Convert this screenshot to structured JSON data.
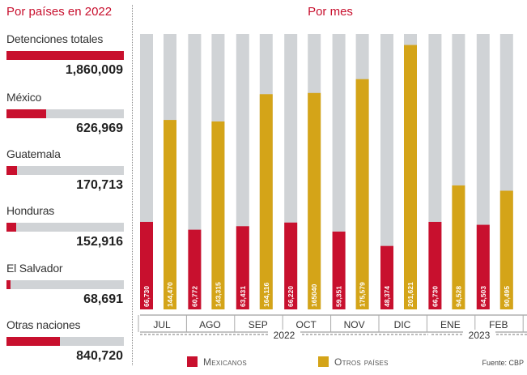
{
  "left_panel": {
    "title": "Por países en 2022",
    "max_value": 1860009,
    "items": [
      {
        "label": "Detenciones totales",
        "value": 1860009,
        "display": "1,860,009"
      },
      {
        "label": "México",
        "value": 626969,
        "display": "626,969"
      },
      {
        "label": "Guatemala",
        "value": 170713,
        "display": "170,713"
      },
      {
        "label": "Honduras",
        "value": 152916,
        "display": "152,916"
      },
      {
        "label": "El Salvador",
        "value": 68691,
        "display": "68,691"
      },
      {
        "label": "Otras naciones",
        "value": 840720,
        "display": "840,720"
      }
    ]
  },
  "right_panel": {
    "title": "Por mes"
  },
  "chart_data": {
    "type": "bar",
    "categories": [
      "JUL",
      "AGO",
      "SEP",
      "OCT",
      "NOV",
      "DIC",
      "ENE",
      "FEB"
    ],
    "years": [
      {
        "label": "2022",
        "months": [
          "JUL",
          "AGO",
          "SEP",
          "OCT",
          "NOV",
          "DIC"
        ]
      },
      {
        "label": "2023",
        "months": [
          "ENE",
          "FEB"
        ]
      }
    ],
    "series": [
      {
        "name": "Mexicanos",
        "values": [
          66730,
          60772,
          63431,
          66220,
          59351,
          48374,
          66730,
          64503
        ],
        "labels": [
          "66,730",
          "60,772",
          "63,431",
          "66,220",
          "59,351",
          "48,374",
          "66,730",
          "64,503"
        ]
      },
      {
        "name": "Otros países",
        "values": [
          144470,
          143315,
          164116,
          165040,
          175579,
          201621,
          94528,
          90495
        ],
        "labels": [
          "144,470",
          "143,315",
          "164,116",
          "165040",
          "175,579",
          "201,621",
          "94,528",
          "90,495"
        ]
      }
    ],
    "ylim": [
      0,
      210000
    ],
    "colors": {
      "Mexicanos": "#c8102e",
      "Otros países": "#d4a418",
      "track": "#d0d3d6"
    }
  },
  "legend": [
    {
      "label": "Mexicanos",
      "color": "#c8102e"
    },
    {
      "label": "Otros países",
      "color": "#d4a418"
    }
  ],
  "source": "Fuente: CBP"
}
